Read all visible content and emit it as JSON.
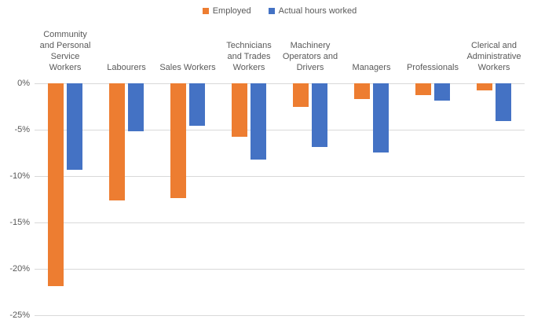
{
  "chart_data": {
    "type": "bar",
    "title": "",
    "xlabel": "",
    "ylabel": "",
    "categories": [
      "Community and Personal Service Workers",
      "Labourers",
      "Sales Workers",
      "Technicians and Trades Workers",
      "Machinery Operators and Drivers",
      "Managers",
      "Professionals",
      "Clerical and Administrative Workers"
    ],
    "category_label_lines": [
      [
        "Community",
        "and Personal",
        "Service",
        "Workers"
      ],
      [
        "Labourers"
      ],
      [
        "Sales Workers"
      ],
      [
        "Technicians",
        "and Trades",
        "Workers"
      ],
      [
        "Machinery",
        "Operators and",
        "Drivers"
      ],
      [
        "Managers"
      ],
      [
        "Professionals"
      ],
      [
        "Clerical and",
        "Administrative",
        "Workers"
      ]
    ],
    "series": [
      {
        "name": "Employed",
        "color": "#ED7D31",
        "values": [
          -21.9,
          -12.7,
          -12.4,
          -5.8,
          -2.6,
          -1.7,
          -1.3,
          -0.8
        ]
      },
      {
        "name": "Actual hours worked",
        "color": "#4472C4",
        "values": [
          -9.4,
          -5.2,
          -4.6,
          -8.3,
          -6.9,
          -7.5,
          -1.9,
          -4.1
        ]
      }
    ],
    "ylim": [
      -25,
      0
    ],
    "ytick_step": 5,
    "ytick_labels": [
      "0%",
      "-5%",
      "-10%",
      "-15%",
      "-20%",
      "-25%"
    ],
    "value_unit": "%",
    "grid": true,
    "legend_position": "top-center",
    "colors": {
      "gridline": "#D9D9D9",
      "text": "#595959",
      "background": "#FFFFFF"
    }
  }
}
